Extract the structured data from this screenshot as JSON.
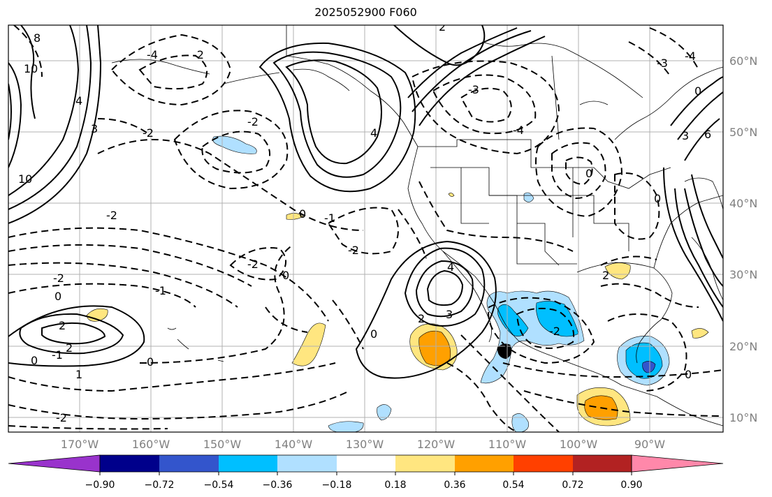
{
  "title": "2025052900 F060",
  "map": {
    "lon_range": [
      -180,
      -80
    ],
    "lat_range": [
      8,
      65
    ],
    "lon_ticks": [
      {
        "value": -170,
        "label": "170°W"
      },
      {
        "value": -160,
        "label": "160°W"
      },
      {
        "value": -150,
        "label": "150°W"
      },
      {
        "value": -140,
        "label": "140°W"
      },
      {
        "value": -130,
        "label": "130°W"
      },
      {
        "value": -120,
        "label": "120°W"
      },
      {
        "value": -110,
        "label": "110°W"
      },
      {
        "value": -100,
        "label": "100°W"
      },
      {
        "value": -90,
        "label": "90°W"
      }
    ],
    "lat_ticks": [
      {
        "value": 10,
        "label": "10°N"
      },
      {
        "value": 20,
        "label": "20°N"
      },
      {
        "value": 30,
        "label": "30°N"
      },
      {
        "value": 40,
        "label": "40°N"
      },
      {
        "value": 50,
        "label": "50°N"
      },
      {
        "value": 60,
        "label": "60°N"
      }
    ],
    "gridlines": true,
    "contour_labels": [
      "10",
      "8",
      "6",
      "4",
      "3",
      "2",
      "1",
      "0",
      "-1",
      "-2",
      "-3",
      "-4",
      "0"
    ]
  },
  "colorbar": {
    "ticks": [
      "−0.90",
      "−0.72",
      "−0.54",
      "−0.36",
      "−0.18",
      "0.18",
      "0.36",
      "0.54",
      "0.72",
      "0.90"
    ],
    "colors": [
      "#9933cc",
      "#00008b",
      "#3355cc",
      "#00bfff",
      "#b0e0ff",
      "#ffffff",
      "#ffe680",
      "#ffa000",
      "#ff4000",
      "#b22222",
      "#ff88aa"
    ]
  }
}
